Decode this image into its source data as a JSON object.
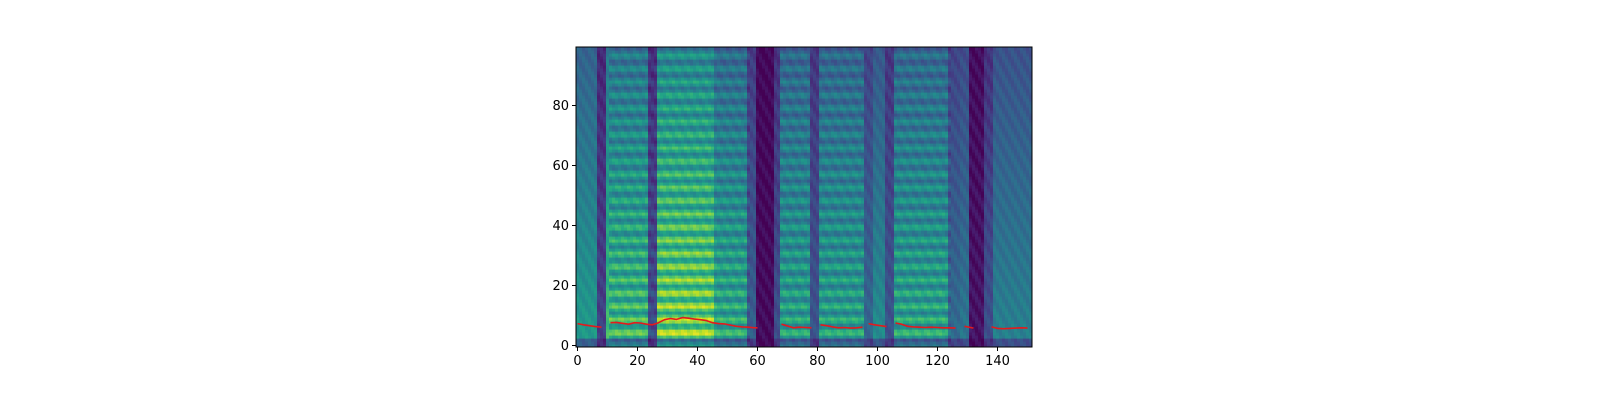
{
  "chart_data": {
    "type": "heatmap",
    "title": "",
    "xlabel": "",
    "ylabel": "",
    "xlim": [
      -0.5,
      151.5
    ],
    "ylim": [
      -0.5,
      99.5
    ],
    "x_ticks": [
      0,
      20,
      40,
      60,
      80,
      100,
      120,
      140
    ],
    "y_ticks": [
      0,
      20,
      40,
      60,
      80
    ],
    "grid": false,
    "legend": "none",
    "colormap": "viridis",
    "heatmap_shape": {
      "frames": 152,
      "bins": 100
    },
    "line_color": "#e41a1c",
    "overlay_line": {
      "name": "",
      "color": "#e41a1c",
      "segments": [
        {
          "x": [
            0,
            2,
            4,
            6,
            8
          ],
          "y": [
            7.3,
            6.9,
            6.6,
            6.3,
            6.1
          ]
        },
        {
          "x": [
            11,
            13,
            15,
            17,
            19,
            21,
            23,
            25,
            27,
            29,
            31,
            33,
            35,
            37,
            39,
            41,
            43,
            45,
            47,
            49,
            51,
            53,
            55,
            57,
            59,
            60
          ],
          "y": [
            7.6,
            7.7,
            7.4,
            7.1,
            7.6,
            7.5,
            7.1,
            6.9,
            7.6,
            8.6,
            9.0,
            8.7,
            9.3,
            9.1,
            8.8,
            8.6,
            8.3,
            7.6,
            7.3,
            7.2,
            6.8,
            6.4,
            6.2,
            6.1,
            5.9,
            5.9
          ]
        },
        {
          "x": [
            68,
            70,
            72,
            74,
            76,
            78
          ],
          "y": [
            7.1,
            6.5,
            5.9,
            6.1,
            6.0,
            5.9
          ]
        },
        {
          "x": [
            81,
            83,
            85,
            87,
            89,
            91,
            93,
            95
          ],
          "y": [
            6.9,
            6.6,
            6.2,
            5.9,
            6.0,
            5.8,
            5.9,
            6.1
          ]
        },
        {
          "x": [
            97,
            99,
            101,
            103
          ],
          "y": [
            7.3,
            6.9,
            6.6,
            6.3
          ]
        },
        {
          "x": [
            106,
            108,
            110,
            112,
            114,
            116,
            118,
            120,
            122,
            124,
            126
          ],
          "y": [
            7.5,
            7.1,
            6.4,
            6.2,
            6.1,
            6.0,
            6.1,
            6.0,
            5.9,
            5.9,
            5.8
          ]
        },
        {
          "x": [
            129,
            131,
            132
          ],
          "y": [
            6.4,
            6.0,
            5.8
          ]
        },
        {
          "x": [
            138,
            140,
            142,
            144,
            146,
            148,
            150
          ],
          "y": [
            6.2,
            5.7,
            5.6,
            5.7,
            5.8,
            5.9,
            5.8
          ]
        }
      ]
    }
  }
}
